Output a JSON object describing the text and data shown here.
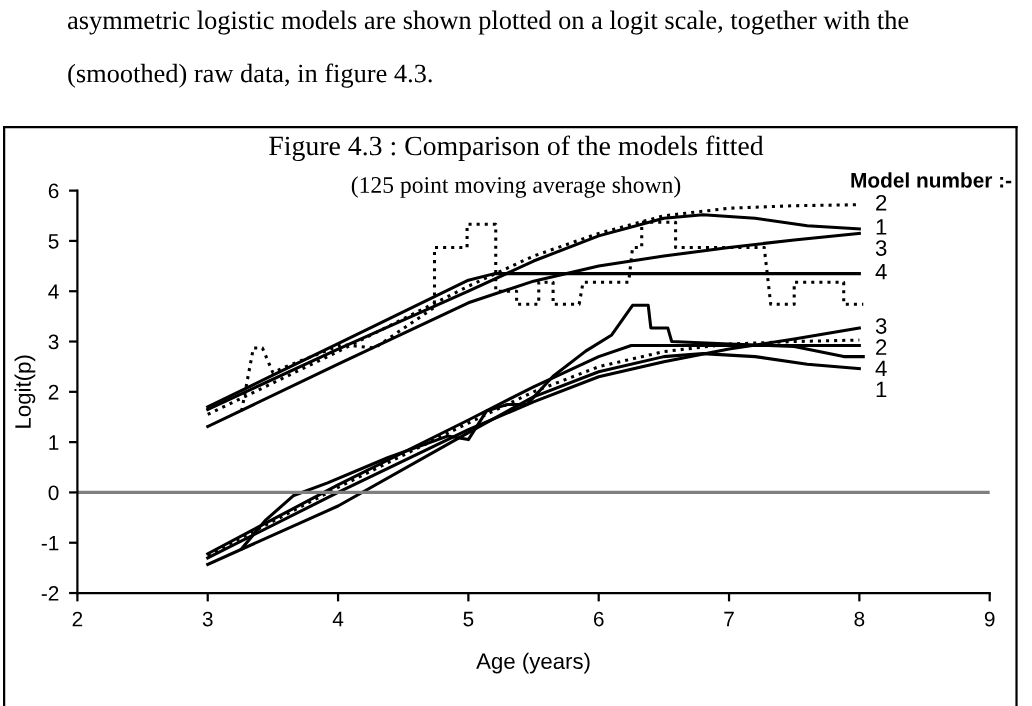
{
  "chart_data": {
    "type": "line",
    "title": "Figure 4.3 : Comparison of the models fitted",
    "subtitle": "(125 point moving average shown)",
    "xlabel": "Age (years)",
    "ylabel": "Logit(p)",
    "legend_title": "Model number :-",
    "annotations": [
      "asymmetric logistic models are shown plotted on a logit scale, together with the",
      "(smoothed) raw data, in figure 4.3."
    ],
    "xlim": [
      2,
      9
    ],
    "xticks": [
      2,
      3,
      4,
      5,
      6,
      7,
      8,
      9
    ],
    "ylim": [
      -2,
      6
    ],
    "yticks": [
      -2,
      -1,
      0,
      1,
      2,
      3,
      4,
      5,
      6
    ],
    "grid": false,
    "legend": false,
    "marker": "none",
    "ref_lines": [
      {
        "axis": "y",
        "value": 0,
        "color": "#808080"
      }
    ],
    "series": [
      {
        "name": "2",
        "color": "#000000",
        "line_style": "dotted",
        "x": [
          3,
          4,
          5,
          5.5,
          6,
          6.5,
          7,
          7.5,
          8
        ],
        "values": [
          1.55,
          2.8,
          4.1,
          4.7,
          5.15,
          5.5,
          5.65,
          5.7,
          5.72
        ]
      },
      {
        "name": "1",
        "color": "#000000",
        "line_style": "solid",
        "x": [
          3,
          4,
          5,
          5.5,
          6,
          6.5,
          6.8,
          7.2,
          7.6,
          8
        ],
        "values": [
          1.65,
          2.85,
          4.0,
          4.6,
          5.1,
          5.45,
          5.52,
          5.45,
          5.3,
          5.24
        ]
      },
      {
        "name": "3",
        "color": "#000000",
        "line_style": "solid",
        "x": [
          3,
          4,
          5,
          5.5,
          6,
          6.5,
          7,
          7.5,
          8
        ],
        "values": [
          1.31,
          2.55,
          3.77,
          4.2,
          4.5,
          4.7,
          4.87,
          5.02,
          5.15
        ]
      },
      {
        "name": "4",
        "color": "#000000",
        "line_style": "solid",
        "x": [
          3,
          3.5,
          4,
          4.5,
          5,
          5.2,
          8
        ],
        "values": [
          1.7,
          2.33,
          2.96,
          3.59,
          4.22,
          4.35,
          4.35
        ]
      },
      {
        "name": "3",
        "color": "#000000",
        "line_style": "solid",
        "x": [
          3,
          4,
          5,
          5.5,
          6,
          6.5,
          7,
          7.5,
          8
        ],
        "values": [
          -1.3,
          0.0,
          1.25,
          1.8,
          2.3,
          2.6,
          2.85,
          3.05,
          3.27
        ]
      },
      {
        "name": "2",
        "color": "#000000",
        "line_style": "dotted",
        "x": [
          3,
          4,
          5,
          5.5,
          6,
          6.5,
          7,
          7.5,
          8
        ],
        "values": [
          -1.25,
          0.1,
          1.38,
          2.0,
          2.5,
          2.8,
          2.95,
          3.0,
          3.03
        ]
      },
      {
        "name": "4",
        "color": "#000000",
        "line_style": "solid",
        "x": [
          3,
          4,
          5,
          5.5,
          6,
          6.25,
          8
        ],
        "values": [
          -1.22,
          0.15,
          1.44,
          2.1,
          2.7,
          2.92,
          2.92
        ]
      },
      {
        "name": "1",
        "color": "#000000",
        "line_style": "solid",
        "x": [
          3,
          4,
          5,
          5.5,
          6,
          6.5,
          6.8,
          7.2,
          7.6,
          8
        ],
        "values": [
          -1.43,
          -0.27,
          1.19,
          1.9,
          2.4,
          2.7,
          2.76,
          2.7,
          2.55,
          2.46
        ]
      },
      {
        "color": "#000000",
        "line_style": "dotted",
        "x": [
          3.26,
          3.35,
          3.42,
          3.5,
          3.6,
          4.03,
          4.28,
          4.74,
          4.74,
          4.99,
          4.99,
          5.21,
          5.21,
          5.37,
          5.37,
          5.54,
          5.54,
          5.65,
          5.65,
          5.85,
          5.88,
          6.23,
          6.26,
          6.33,
          6.33,
          6.59,
          6.59,
          7.27,
          7.32,
          7.5,
          7.5,
          7.88,
          7.88,
          8.03
        ],
        "values": [
          1.62,
          2.87,
          2.87,
          2.38,
          2.5,
          2.94,
          2.87,
          3.68,
          4.87,
          4.87,
          5.33,
          5.33,
          4.0,
          4.0,
          3.74,
          3.74,
          4.18,
          4.18,
          3.74,
          3.74,
          4.18,
          4.18,
          4.87,
          4.87,
          5.37,
          5.37,
          4.87,
          4.87,
          3.74,
          3.74,
          4.18,
          4.18,
          3.74,
          3.74
        ]
      },
      {
        "color": "#000000",
        "line_style": "solid",
        "x": [
          3.26,
          3.44,
          3.66,
          3.92,
          4.38,
          4.84,
          5.0,
          5.14,
          5.3,
          5.45,
          5.65,
          5.9,
          6.1,
          6.2,
          6.26,
          6.38,
          6.4,
          6.53,
          6.56,
          7.0,
          7.5,
          7.88,
          8.03
        ],
        "values": [
          -1.12,
          -0.56,
          -0.06,
          0.19,
          0.69,
          1.12,
          1.05,
          1.62,
          1.75,
          1.75,
          2.31,
          2.81,
          3.13,
          3.5,
          3.72,
          3.72,
          3.27,
          3.27,
          3.0,
          2.95,
          2.9,
          2.7,
          2.7
        ]
      }
    ]
  }
}
